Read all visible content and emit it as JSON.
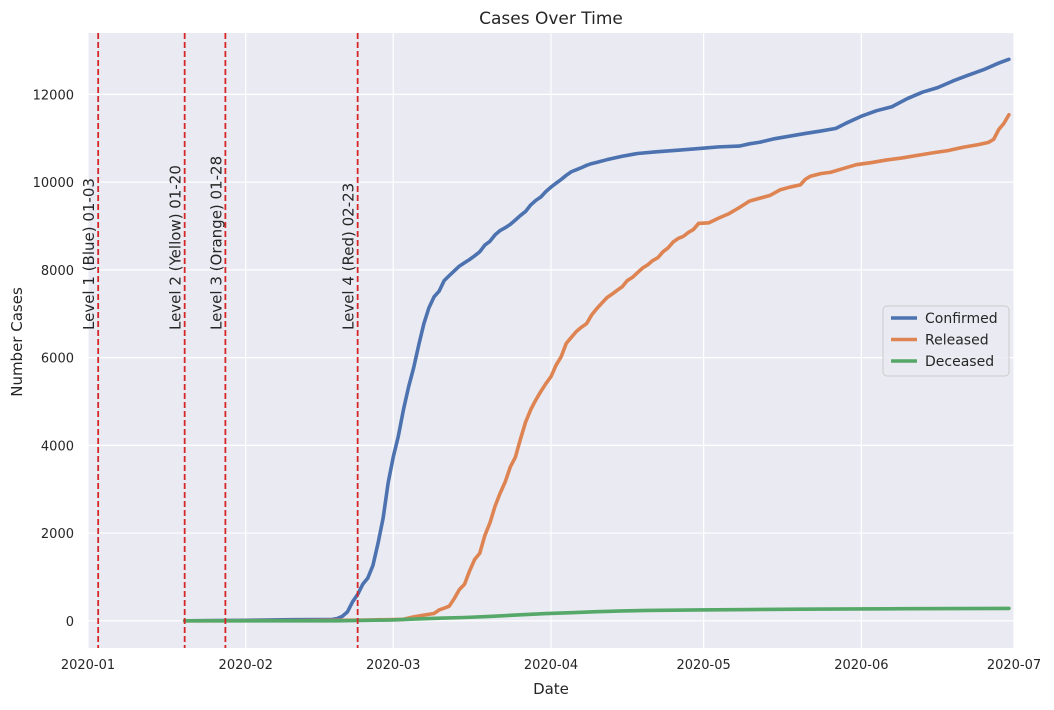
{
  "chart_data": {
    "type": "line",
    "title": "Cases Over Time",
    "xlabel": "Date",
    "ylabel": "Number Cases",
    "x_axis_type": "date",
    "xlim": [
      "2020-01-01",
      "2020-07-01"
    ],
    "ylim": [
      -620,
      13400
    ],
    "x_ticks": [
      "2020-01",
      "2020-02",
      "2020-03",
      "2020-04",
      "2020-05",
      "2020-06",
      "2020-07"
    ],
    "y_ticks": [
      0,
      2000,
      4000,
      6000,
      8000,
      10000,
      12000
    ],
    "grid": true,
    "legend_position": "center-right",
    "background_color": "#eaeaf2",
    "series": [
      {
        "name": "Confirmed",
        "color": "#4c72b0",
        "points": [
          [
            "2020-01-20",
            1
          ],
          [
            "2020-02-01",
            12
          ],
          [
            "2020-02-10",
            27
          ],
          [
            "2020-02-18",
            31
          ],
          [
            "2020-02-19",
            51
          ],
          [
            "2020-02-20",
            104
          ],
          [
            "2020-02-21",
            204
          ],
          [
            "2020-02-22",
            433
          ],
          [
            "2020-02-23",
            602
          ],
          [
            "2020-02-24",
            833
          ],
          [
            "2020-02-25",
            977
          ],
          [
            "2020-02-26",
            1261
          ],
          [
            "2020-02-27",
            1766
          ],
          [
            "2020-02-28",
            2337
          ],
          [
            "2020-02-29",
            3150
          ],
          [
            "2020-03-01",
            3736
          ],
          [
            "2020-03-02",
            4212
          ],
          [
            "2020-03-03",
            4812
          ],
          [
            "2020-03-04",
            5328
          ],
          [
            "2020-03-05",
            5766
          ],
          [
            "2020-03-06",
            6284
          ],
          [
            "2020-03-07",
            6767
          ],
          [
            "2020-03-08",
            7134
          ],
          [
            "2020-03-09",
            7382
          ],
          [
            "2020-03-10",
            7513
          ],
          [
            "2020-03-11",
            7755
          ],
          [
            "2020-03-12",
            7869
          ],
          [
            "2020-03-13",
            7979
          ],
          [
            "2020-03-14",
            8086
          ],
          [
            "2020-03-15",
            8162
          ],
          [
            "2020-03-16",
            8236
          ],
          [
            "2020-03-17",
            8320
          ],
          [
            "2020-03-18",
            8413
          ],
          [
            "2020-03-19",
            8565
          ],
          [
            "2020-03-20",
            8652
          ],
          [
            "2020-03-21",
            8799
          ],
          [
            "2020-03-22",
            8897
          ],
          [
            "2020-03-23",
            8961
          ],
          [
            "2020-03-24",
            9037
          ],
          [
            "2020-03-25",
            9137
          ],
          [
            "2020-03-26",
            9241
          ],
          [
            "2020-03-27",
            9332
          ],
          [
            "2020-03-28",
            9478
          ],
          [
            "2020-03-29",
            9583
          ],
          [
            "2020-03-30",
            9661
          ],
          [
            "2020-03-31",
            9786
          ],
          [
            "2020-04-01",
            9887
          ],
          [
            "2020-04-02",
            9976
          ],
          [
            "2020-04-03",
            10062
          ],
          [
            "2020-04-04",
            10156
          ],
          [
            "2020-04-05",
            10237
          ],
          [
            "2020-04-06",
            10284
          ],
          [
            "2020-04-07",
            10331
          ],
          [
            "2020-04-08",
            10384
          ],
          [
            "2020-04-09",
            10423
          ],
          [
            "2020-04-10",
            10450
          ],
          [
            "2020-04-12",
            10512
          ],
          [
            "2020-04-15",
            10591
          ],
          [
            "2020-04-18",
            10653
          ],
          [
            "2020-04-22",
            10694
          ],
          [
            "2020-04-26",
            10728
          ],
          [
            "2020-04-30",
            10765
          ],
          [
            "2020-05-04",
            10804
          ],
          [
            "2020-05-08",
            10822
          ],
          [
            "2020-05-10",
            10874
          ],
          [
            "2020-05-12",
            10909
          ],
          [
            "2020-05-15",
            10991
          ],
          [
            "2020-05-18",
            11050
          ],
          [
            "2020-05-21",
            11110
          ],
          [
            "2020-05-24",
            11165
          ],
          [
            "2020-05-27",
            11225
          ],
          [
            "2020-05-29",
            11344
          ],
          [
            "2020-06-01",
            11503
          ],
          [
            "2020-06-04",
            11629
          ],
          [
            "2020-06-07",
            11719
          ],
          [
            "2020-06-10",
            11902
          ],
          [
            "2020-06-13",
            12051
          ],
          [
            "2020-06-16",
            12155
          ],
          [
            "2020-06-19",
            12306
          ],
          [
            "2020-06-22",
            12438
          ],
          [
            "2020-06-25",
            12563
          ],
          [
            "2020-06-28",
            12715
          ],
          [
            "2020-06-30",
            12800
          ]
        ]
      },
      {
        "name": "Released",
        "color": "#dd8452",
        "points": [
          [
            "2020-01-20",
            0
          ],
          [
            "2020-02-10",
            3
          ],
          [
            "2020-02-25",
            18
          ],
          [
            "2020-03-01",
            30
          ],
          [
            "2020-03-03",
            34
          ],
          [
            "2020-03-05",
            88
          ],
          [
            "2020-03-07",
            130
          ],
          [
            "2020-03-09",
            166
          ],
          [
            "2020-03-10",
            247
          ],
          [
            "2020-03-11",
            288
          ],
          [
            "2020-03-12",
            333
          ],
          [
            "2020-03-13",
            510
          ],
          [
            "2020-03-14",
            714
          ],
          [
            "2020-03-15",
            834
          ],
          [
            "2020-03-16",
            1137
          ],
          [
            "2020-03-17",
            1401
          ],
          [
            "2020-03-18",
            1540
          ],
          [
            "2020-03-19",
            1947
          ],
          [
            "2020-03-20",
            2233
          ],
          [
            "2020-03-21",
            2612
          ],
          [
            "2020-03-22",
            2909
          ],
          [
            "2020-03-23",
            3166
          ],
          [
            "2020-03-24",
            3507
          ],
          [
            "2020-03-25",
            3730
          ],
          [
            "2020-03-26",
            4144
          ],
          [
            "2020-03-27",
            4528
          ],
          [
            "2020-03-28",
            4811
          ],
          [
            "2020-03-29",
            5033
          ],
          [
            "2020-03-30",
            5228
          ],
          [
            "2020-03-31",
            5408
          ],
          [
            "2020-04-01",
            5567
          ],
          [
            "2020-04-02",
            5828
          ],
          [
            "2020-04-03",
            6021
          ],
          [
            "2020-04-04",
            6325
          ],
          [
            "2020-04-05",
            6463
          ],
          [
            "2020-04-06",
            6598
          ],
          [
            "2020-04-07",
            6694
          ],
          [
            "2020-04-08",
            6776
          ],
          [
            "2020-04-09",
            6973
          ],
          [
            "2020-04-10",
            7117
          ],
          [
            "2020-04-11",
            7243
          ],
          [
            "2020-04-12",
            7368
          ],
          [
            "2020-04-13",
            7447
          ],
          [
            "2020-04-14",
            7534
          ],
          [
            "2020-04-15",
            7616
          ],
          [
            "2020-04-16",
            7757
          ],
          [
            "2020-04-17",
            7829
          ],
          [
            "2020-04-18",
            7937
          ],
          [
            "2020-04-19",
            8042
          ],
          [
            "2020-04-20",
            8114
          ],
          [
            "2020-04-21",
            8213
          ],
          [
            "2020-04-22",
            8277
          ],
          [
            "2020-04-23",
            8411
          ],
          [
            "2020-04-24",
            8501
          ],
          [
            "2020-04-25",
            8635
          ],
          [
            "2020-04-26",
            8717
          ],
          [
            "2020-04-27",
            8764
          ],
          [
            "2020-04-28",
            8854
          ],
          [
            "2020-04-29",
            8922
          ],
          [
            "2020-04-30",
            9059
          ],
          [
            "2020-05-02",
            9072
          ],
          [
            "2020-05-04",
            9183
          ],
          [
            "2020-05-06",
            9283
          ],
          [
            "2020-05-08",
            9419
          ],
          [
            "2020-05-10",
            9568
          ],
          [
            "2020-05-12",
            9632
          ],
          [
            "2020-05-14",
            9695
          ],
          [
            "2020-05-16",
            9823
          ],
          [
            "2020-05-18",
            9888
          ],
          [
            "2020-05-20",
            9938
          ],
          [
            "2020-05-21",
            10066
          ],
          [
            "2020-05-22",
            10135
          ],
          [
            "2020-05-24",
            10194
          ],
          [
            "2020-05-26",
            10226
          ],
          [
            "2020-05-28",
            10295
          ],
          [
            "2020-05-31",
            10398
          ],
          [
            "2020-06-03",
            10447
          ],
          [
            "2020-06-06",
            10506
          ],
          [
            "2020-06-09",
            10552
          ],
          [
            "2020-06-12",
            10611
          ],
          [
            "2020-06-15",
            10667
          ],
          [
            "2020-06-18",
            10718
          ],
          [
            "2020-06-21",
            10795
          ],
          [
            "2020-06-24",
            10856
          ],
          [
            "2020-06-26",
            10907
          ],
          [
            "2020-06-27",
            10975
          ],
          [
            "2020-06-28",
            11200
          ],
          [
            "2020-06-29",
            11337
          ],
          [
            "2020-06-30",
            11537
          ]
        ]
      },
      {
        "name": "Deceased",
        "color": "#55a868",
        "points": [
          [
            "2020-01-20",
            0
          ],
          [
            "2020-02-19",
            0
          ],
          [
            "2020-02-25",
            10
          ],
          [
            "2020-03-01",
            20
          ],
          [
            "2020-03-05",
            40
          ],
          [
            "2020-03-10",
            60
          ],
          [
            "2020-03-15",
            75
          ],
          [
            "2020-03-20",
            100
          ],
          [
            "2020-03-25",
            131
          ],
          [
            "2020-03-31",
            165
          ],
          [
            "2020-04-05",
            186
          ],
          [
            "2020-04-10",
            208
          ],
          [
            "2020-04-15",
            225
          ],
          [
            "2020-04-20",
            237
          ],
          [
            "2020-04-25",
            242
          ],
          [
            "2020-04-30",
            247
          ],
          [
            "2020-05-10",
            256
          ],
          [
            "2020-05-20",
            264
          ],
          [
            "2020-05-31",
            271
          ],
          [
            "2020-06-10",
            276
          ],
          [
            "2020-06-20",
            280
          ],
          [
            "2020-06-30",
            282
          ]
        ]
      }
    ],
    "vertical_markers": [
      {
        "date": "2020-01-03",
        "label": "Level 1 (Blue) 01-03"
      },
      {
        "date": "2020-01-20",
        "label": "Level 2 (Yellow) 01-20"
      },
      {
        "date": "2020-01-28",
        "label": "Level 3 (Orange) 01-28"
      },
      {
        "date": "2020-02-23",
        "label": "Level 4 (Red) 02-23"
      }
    ],
    "marker_color": "#d62728",
    "grid_color": "#ffffff"
  }
}
